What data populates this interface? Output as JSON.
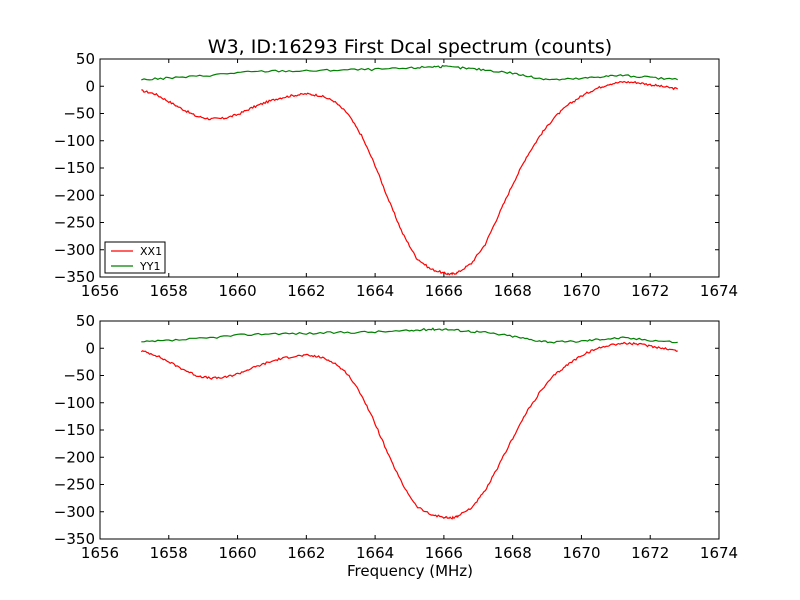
{
  "figure": {
    "title": "W3, ID:16293 First Dcal spectrum (counts)",
    "xlabel": "Frequency (MHz)"
  },
  "chart_data": [
    {
      "type": "line",
      "title": "W3, ID:16293 First Dcal spectrum (counts)",
      "xlabel": "",
      "ylabel": "",
      "xlim": [
        1656,
        1674
      ],
      "ylim": [
        -350,
        50
      ],
      "xticks": [
        1656,
        1658,
        1660,
        1662,
        1664,
        1666,
        1668,
        1670,
        1672,
        1674
      ],
      "yticks": [
        50,
        0,
        -50,
        -100,
        -150,
        -200,
        -250,
        -300,
        -350
      ],
      "grid": false,
      "legend": "lower-left",
      "series": [
        {
          "name": "XX1",
          "color": "#ff0000",
          "x": [
            1657.2,
            1657.6,
            1658.0,
            1658.4,
            1658.8,
            1659.2,
            1659.6,
            1660.0,
            1660.4,
            1660.8,
            1661.2,
            1661.6,
            1662.0,
            1662.4,
            1662.8,
            1663.2,
            1663.6,
            1664.0,
            1664.4,
            1664.8,
            1665.2,
            1665.6,
            1666.0,
            1666.2,
            1666.4,
            1666.8,
            1667.2,
            1667.6,
            1668.0,
            1668.4,
            1668.8,
            1669.2,
            1669.6,
            1670.0,
            1670.4,
            1670.8,
            1671.2,
            1671.6,
            1672.0,
            1672.4,
            1672.8
          ],
          "y": [
            -8,
            -14,
            -28,
            -42,
            -55,
            -60,
            -59,
            -52,
            -40,
            -30,
            -22,
            -17,
            -14,
            -17,
            -27,
            -50,
            -90,
            -145,
            -210,
            -270,
            -315,
            -335,
            -343,
            -345,
            -342,
            -325,
            -290,
            -235,
            -180,
            -130,
            -90,
            -58,
            -35,
            -18,
            -5,
            4,
            8,
            7,
            3,
            -1,
            -5
          ]
        },
        {
          "name": "YY1",
          "color": "#008000",
          "x": [
            1657.2,
            1658.0,
            1659.0,
            1660.0,
            1661.0,
            1662.0,
            1663.0,
            1664.0,
            1665.0,
            1665.6,
            1666.0,
            1666.6,
            1667.2,
            1668.0,
            1668.6,
            1669.2,
            1670.0,
            1670.6,
            1671.2,
            1672.0,
            1672.8
          ],
          "y": [
            12,
            15,
            19,
            25,
            28,
            28,
            30,
            31,
            33,
            36,
            36,
            33,
            30,
            24,
            16,
            12,
            14,
            18,
            20,
            16,
            12
          ]
        }
      ]
    },
    {
      "type": "line",
      "title": "",
      "xlabel": "Frequency (MHz)",
      "ylabel": "",
      "xlim": [
        1656,
        1674
      ],
      "ylim": [
        -350,
        50
      ],
      "xticks": [
        1656,
        1658,
        1660,
        1662,
        1664,
        1666,
        1668,
        1670,
        1672,
        1674
      ],
      "yticks": [
        50,
        0,
        -50,
        -100,
        -150,
        -200,
        -250,
        -300,
        -350
      ],
      "grid": false,
      "legend": "",
      "series": [
        {
          "color": "#ff0000",
          "x": [
            1657.2,
            1657.6,
            1658.0,
            1658.4,
            1658.8,
            1659.2,
            1659.6,
            1660.0,
            1660.4,
            1660.8,
            1661.2,
            1661.6,
            1662.0,
            1662.4,
            1662.8,
            1663.2,
            1663.6,
            1664.0,
            1664.4,
            1664.8,
            1665.2,
            1665.6,
            1666.0,
            1666.2,
            1666.4,
            1666.8,
            1667.2,
            1667.6,
            1668.0,
            1668.4,
            1668.8,
            1669.2,
            1669.6,
            1670.0,
            1670.4,
            1670.8,
            1671.2,
            1671.6,
            1672.0,
            1672.4,
            1672.8
          ],
          "y": [
            -5,
            -12,
            -25,
            -38,
            -50,
            -55,
            -54,
            -47,
            -37,
            -28,
            -20,
            -15,
            -13,
            -16,
            -26,
            -47,
            -85,
            -138,
            -198,
            -250,
            -290,
            -305,
            -310,
            -312,
            -308,
            -293,
            -262,
            -215,
            -165,
            -118,
            -80,
            -50,
            -30,
            -13,
            -2,
            6,
            9,
            8,
            4,
            0,
            -5
          ]
        },
        {
          "color": "#008000",
          "x": [
            1657.2,
            1658.0,
            1659.0,
            1660.0,
            1661.0,
            1662.0,
            1663.0,
            1664.0,
            1665.0,
            1665.6,
            1666.0,
            1666.6,
            1667.2,
            1668.0,
            1668.6,
            1669.2,
            1670.0,
            1670.6,
            1671.2,
            1672.0,
            1672.8
          ],
          "y": [
            11,
            14,
            18,
            24,
            27,
            27,
            29,
            30,
            32,
            35,
            35,
            32,
            29,
            22,
            15,
            11,
            13,
            17,
            19,
            15,
            11
          ]
        }
      ]
    }
  ]
}
